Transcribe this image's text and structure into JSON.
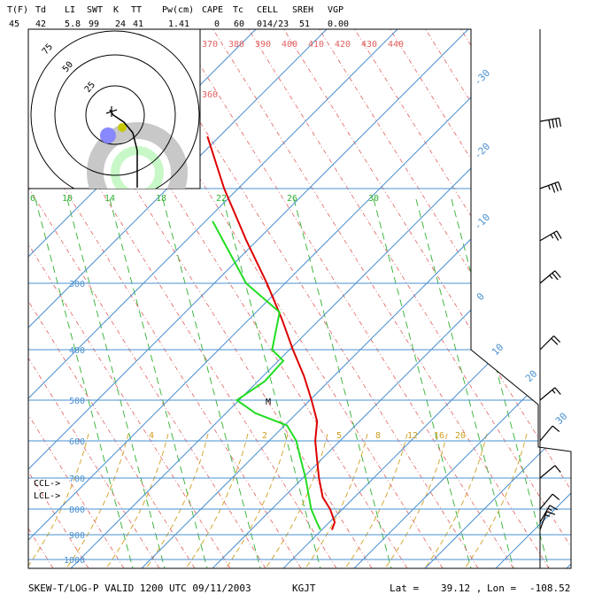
{
  "indices": {
    "headers": [
      "T(F)",
      "Td",
      "LI",
      "SWT",
      "K",
      "TT",
      "Pw(cm)",
      "CAPE",
      "Tc",
      "CELL",
      "SREH",
      "VGP"
    ],
    "values": [
      "45",
      "42",
      "5.8",
      "99",
      "24",
      "41",
      "1.41",
      "0",
      "60",
      "014/23",
      "51",
      "0.00"
    ]
  },
  "footer": {
    "title": "SKEW-T/LOG-P VALID 1200 UTC 09/11/2003",
    "station": "KGJT",
    "lat_label": "Lat =",
    "lat_value": "39.12 ,",
    "lon_label": "Lon =",
    "lon_value": "-108.52"
  },
  "level_labels": {
    "ccl": "CCL->",
    "lcl": "LCL->",
    "max_temp": "M"
  },
  "chart_data": {
    "type": "line",
    "title": "",
    "xlabel": "",
    "ylabel": "",
    "y_scale": "log-pressure",
    "ylim_hPa": [
      1000,
      150
    ],
    "isobars_hPa": [
      1000,
      900,
      800,
      700,
      600,
      500,
      400,
      300,
      200
    ],
    "isotherm_labels_C": [
      "-30",
      "-20",
      "-10",
      "0",
      "10",
      "20",
      "30"
    ],
    "dry_adiabat_labels_K": [
      "360",
      "370",
      "380",
      "390",
      "400",
      "410",
      "420",
      "430",
      "440"
    ],
    "mixing_ratio_labels_gkg": [
      "6",
      "10",
      "14",
      "18",
      "22",
      "26",
      "30"
    ],
    "wet_bulb_labels_C": [
      "4",
      "2",
      "5",
      "8",
      "12",
      "16",
      "20"
    ],
    "series": [
      {
        "kind": "temperature",
        "color": "#dd0000",
        "points": [
          {
            "p": 880,
            "t": 12
          },
          {
            "p": 850,
            "t": 13.5
          },
          {
            "p": 800,
            "t": 11
          },
          {
            "p": 760,
            "t": 7
          },
          {
            "p": 700,
            "t": 5
          },
          {
            "p": 650,
            "t": 4
          },
          {
            "p": 600,
            "t": 3
          },
          {
            "p": 550,
            "t": 4
          },
          {
            "p": 500,
            "t": 1
          },
          {
            "p": 450,
            "t": -3
          },
          {
            "p": 400,
            "t": -9
          },
          {
            "p": 350,
            "t": -15
          },
          {
            "p": 300,
            "t": -23
          },
          {
            "p": 250,
            "t": -34
          },
          {
            "p": 200,
            "t": -46
          },
          {
            "p": 160,
            "t": -55
          }
        ]
      },
      {
        "kind": "dewpoint",
        "color": "#22dd22",
        "points": [
          {
            "p": 880,
            "t": 10
          },
          {
            "p": 850,
            "t": 8
          },
          {
            "p": 800,
            "t": 5
          },
          {
            "p": 700,
            "t": 2
          },
          {
            "p": 640,
            "t": -1
          },
          {
            "p": 600,
            "t": -3
          },
          {
            "p": 560,
            "t": -8
          },
          {
            "p": 530,
            "t": -25
          },
          {
            "p": 500,
            "t": -35
          },
          {
            "p": 460,
            "t": -20
          },
          {
            "p": 420,
            "t": -10
          },
          {
            "p": 400,
            "t": -16
          },
          {
            "p": 340,
            "t": -12
          },
          {
            "p": 300,
            "t": -30
          },
          {
            "p": 230,
            "t": -48
          }
        ]
      }
    ],
    "wind_barbs": [
      {
        "p": 880,
        "dir_deg": 200,
        "spd_kt": 15
      },
      {
        "p": 850,
        "dir_deg": 210,
        "spd_kt": 15
      },
      {
        "p": 800,
        "dir_deg": 220,
        "spd_kt": 10
      },
      {
        "p": 700,
        "dir_deg": 230,
        "spd_kt": 10
      },
      {
        "p": 600,
        "dir_deg": 220,
        "spd_kt": 10
      },
      {
        "p": 500,
        "dir_deg": 230,
        "spd_kt": 15
      },
      {
        "p": 400,
        "dir_deg": 225,
        "spd_kt": 20
      },
      {
        "p": 300,
        "dir_deg": 230,
        "spd_kt": 25
      },
      {
        "p": 250,
        "dir_deg": 240,
        "spd_kt": 25
      },
      {
        "p": 200,
        "dir_deg": 250,
        "spd_kt": 35
      },
      {
        "p": 150,
        "dir_deg": 260,
        "spd_kt": 40
      }
    ],
    "hodograph": {
      "ring_labels": [
        "75",
        "50",
        "25"
      ],
      "trace_uv": [
        {
          "u": 0,
          "v": -16
        },
        {
          "u": 0.5,
          "v": -12
        },
        {
          "u": 0.2,
          "v": -8
        },
        {
          "u": 0.6,
          "v": -4
        },
        {
          "u": 0.3,
          "v": -1
        },
        {
          "u": -1,
          "v": 2
        },
        {
          "u": -2,
          "v": 3
        },
        {
          "u": -2.5,
          "v": 5
        }
      ]
    }
  }
}
